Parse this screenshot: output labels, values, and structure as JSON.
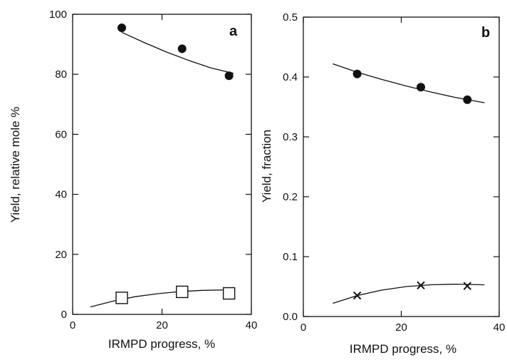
{
  "chart_data": [
    {
      "type": "scatter",
      "panel_label": "a",
      "xlabel": "IRMPD progress, %",
      "ylabel": "Yield, relative mole %",
      "xlim": [
        0,
        40
      ],
      "ylim": [
        0,
        100
      ],
      "xticks": [
        0,
        20,
        40
      ],
      "yticks": [
        0,
        20,
        40,
        60,
        80,
        100
      ],
      "grid": false,
      "series": [
        {
          "marker": "filled-circle",
          "x": [
            11,
            24.5,
            35
          ],
          "y": [
            95.5,
            88.5,
            79.5
          ],
          "fit": {
            "x": [
              11,
              16,
              21,
              26,
              31,
              36
            ],
            "y": [
              94,
              90.6,
              87.4,
              84.6,
              82.1,
              80.3
            ]
          }
        },
        {
          "marker": "open-square",
          "x": [
            11,
            24.5,
            35
          ],
          "y": [
            5.5,
            7.5,
            7
          ],
          "fit": {
            "x": [
              4,
              9,
              14,
              19,
              24,
              29,
              36
            ],
            "y": [
              2.5,
              4.4,
              5.9,
              6.9,
              7.6,
              8,
              8.2
            ]
          }
        }
      ]
    },
    {
      "type": "scatter",
      "panel_label": "b",
      "xlabel": "IRMPD progress, %",
      "ylabel": "Yield, fraction",
      "xlim": [
        0,
        40
      ],
      "ylim": [
        0,
        0.5
      ],
      "xticks": [
        0,
        20,
        40
      ],
      "yticks": [
        0,
        0.1,
        0.2,
        0.3,
        0.4,
        0.5
      ],
      "grid": false,
      "series": [
        {
          "marker": "filled-circle",
          "x": [
            11,
            24,
            33.5
          ],
          "y": [
            0.405,
            0.383,
            0.362
          ],
          "fit": {
            "x": [
              6,
              11,
              16,
              21,
              26,
              31,
              37
            ],
            "y": [
              0.422,
              0.408,
              0.396,
              0.385,
              0.375,
              0.366,
              0.357
            ]
          }
        },
        {
          "marker": "cross",
          "x": [
            11,
            24,
            33.5
          ],
          "y": [
            0.035,
            0.052,
            0.051
          ],
          "fit": {
            "x": [
              6,
              11,
              16,
              21,
              26,
              31,
              37
            ],
            "y": [
              0.022,
              0.035,
              0.044,
              0.05,
              0.053,
              0.054,
              0.053
            ]
          }
        }
      ]
    }
  ]
}
